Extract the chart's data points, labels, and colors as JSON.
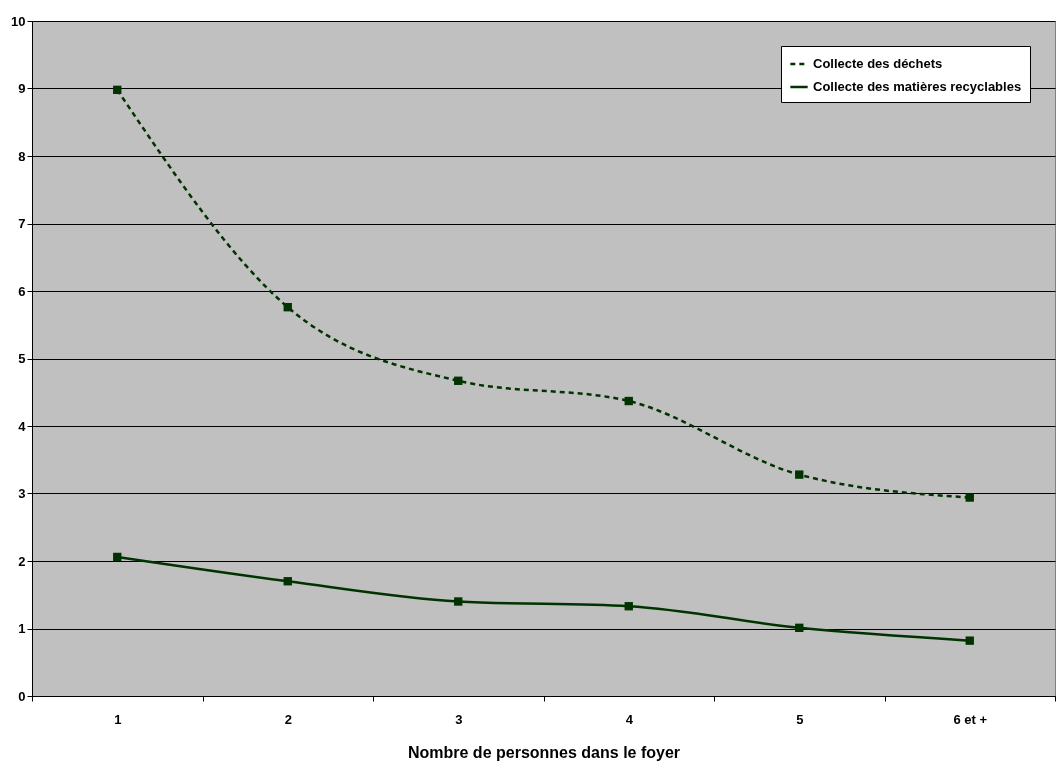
{
  "chart_data": {
    "type": "line",
    "xlabel": "Nombre de personnes dans le foyer",
    "categories": [
      "1",
      "2",
      "3",
      "4",
      "5",
      "6 et +"
    ],
    "series": [
      {
        "name": "Collecte des déchets",
        "color": "#003300",
        "line_style": "dashed",
        "values": [
          8.98,
          5.76,
          4.67,
          4.37,
          3.28,
          2.94
        ]
      },
      {
        "name": "Collecte des matières recyclables",
        "color": "#003300",
        "line_style": "solid",
        "values": [
          2.06,
          1.7,
          1.4,
          1.33,
          1.01,
          0.82
        ]
      }
    ],
    "ylim": [
      0,
      10
    ],
    "yticks": [
      0,
      1,
      2,
      3,
      4,
      5,
      6,
      7,
      8,
      9,
      10
    ],
    "grid": "y",
    "legend": "top right",
    "marker": "square"
  }
}
